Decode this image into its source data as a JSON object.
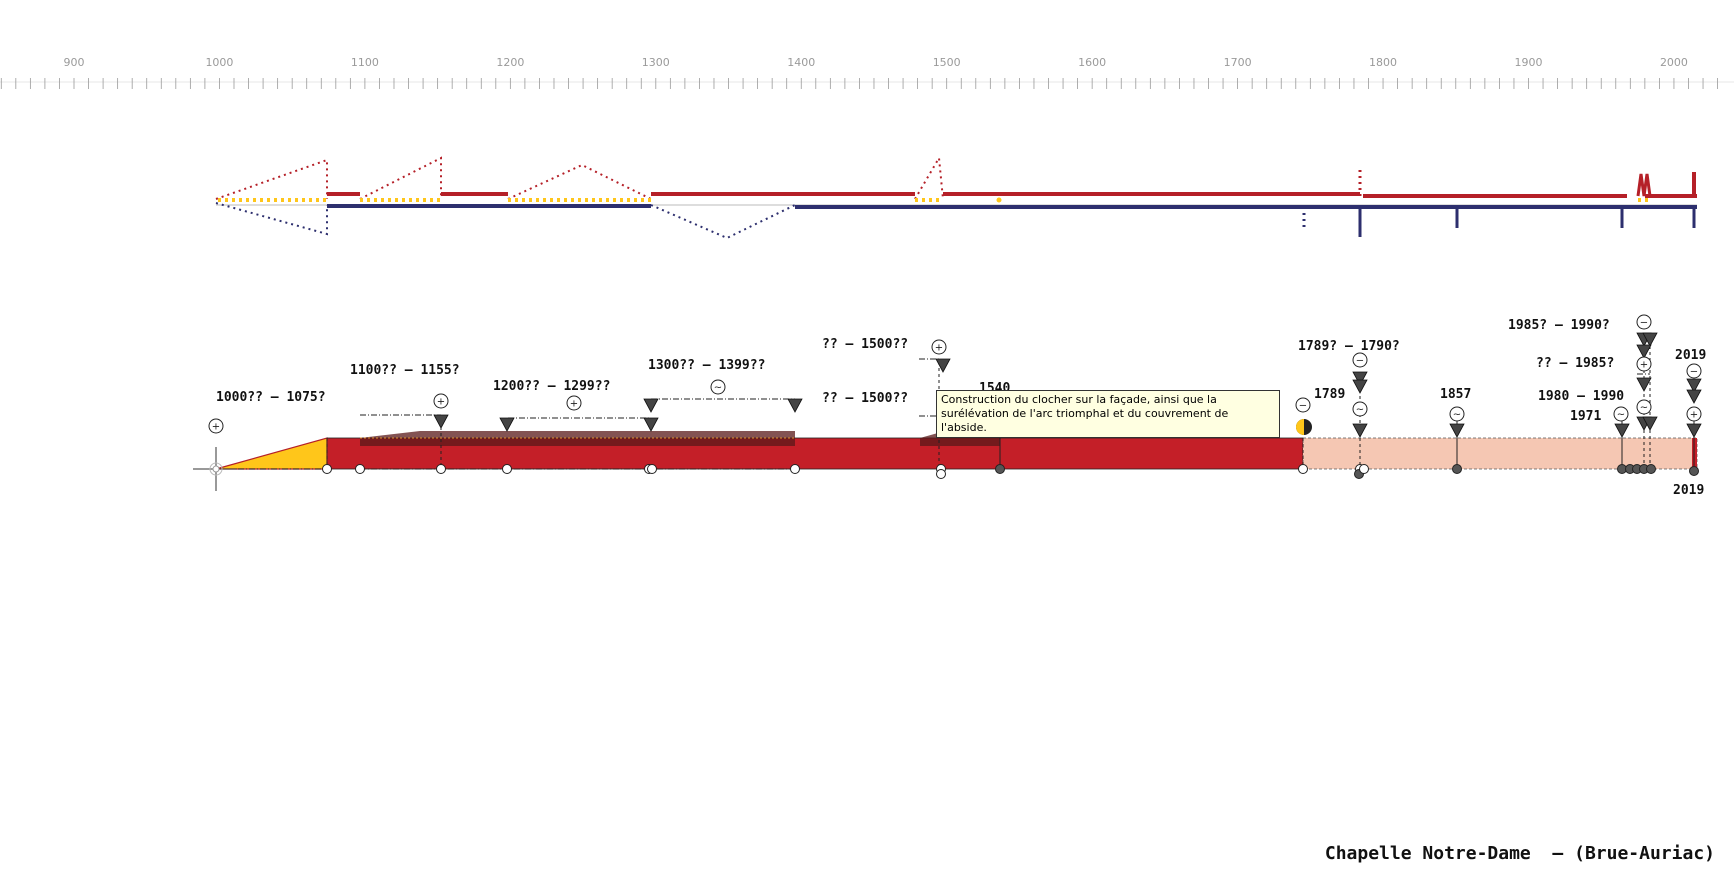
{
  "title": "Chapelle Notre-Dame  – (Brue-Auriac)",
  "ruler": {
    "ticks": [
      900,
      1000,
      1100,
      1200,
      1300,
      1400,
      1500,
      1600,
      1700,
      1800,
      1900,
      2000
    ],
    "range": [
      900,
      2020
    ]
  },
  "tooltip": {
    "text": "Construction du clocher sur la façade, ainsi que la surélévation de l'arc triomphal et du couvrement de l'abside."
  },
  "labels": [
    {
      "text": "1000?? – 1075?",
      "anchor_year": 1000
    },
    {
      "text": "1100?? – 1155?",
      "anchor_year": 1100
    },
    {
      "text": "1200?? – 1299??",
      "anchor_year": 1200
    },
    {
      "text": "1300?? – 1399??",
      "anchor_year": 1300
    },
    {
      "text": "?? – 1500??",
      "anchor_year": 1500
    },
    {
      "text": "?? – 1500??",
      "anchor_year": 1500
    },
    {
      "text": "1540",
      "anchor_year": 1540
    },
    {
      "text": "1789? – 1790?",
      "anchor_year": 1789
    },
    {
      "text": "1789",
      "anchor_year": 1789
    },
    {
      "text": "1857",
      "anchor_year": 1857
    },
    {
      "text": "1985? – 1990?",
      "anchor_year": 1985
    },
    {
      "text": "?? – 1985?",
      "anchor_year": 1985
    },
    {
      "text": "1980 – 1990",
      "anchor_year": 1980
    },
    {
      "text": "1971",
      "anchor_year": 1971
    },
    {
      "text": "2019",
      "anchor_year": 2019
    },
    {
      "text": "2019",
      "anchor_year": 2019
    }
  ],
  "colors": {
    "main_bar": "#c41f28",
    "late_bar": "#f5c7b3",
    "wedge": "#ffc61a",
    "top_line_red": "#b52028",
    "top_line_blue": "#2d2f6e",
    "dots": "#ffc61a",
    "ruler": "#9a9a9a"
  },
  "icons": [
    "plus-circle-icon",
    "minus-circle-icon",
    "tilde-circle-icon",
    "down-triangle-icon",
    "half-moon-icon",
    "crosshair-icon"
  ]
}
